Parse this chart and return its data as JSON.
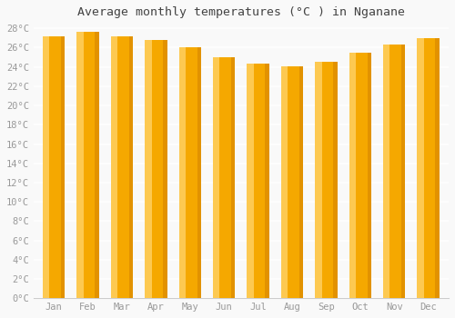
{
  "title": "Average monthly temperatures (°C ) in Nganane",
  "months": [
    "Jan",
    "Feb",
    "Mar",
    "Apr",
    "May",
    "Jun",
    "Jul",
    "Aug",
    "Sep",
    "Oct",
    "Nov",
    "Dec"
  ],
  "temperatures": [
    27.2,
    27.6,
    27.2,
    26.8,
    26.0,
    25.0,
    24.3,
    24.1,
    24.5,
    25.5,
    26.3,
    27.0
  ],
  "bar_color_main": "#F5A800",
  "bar_color_left": "#FFD060",
  "bar_color_right": "#E09000",
  "ylim_max": 28,
  "ytick_step": 2,
  "background_color": "#f9f9f9",
  "plot_bg_color": "#f9f9f9",
  "grid_color": "#ffffff",
  "tick_label_color": "#999999",
  "title_color": "#444444",
  "title_fontsize": 9.5,
  "tick_fontsize": 7.5,
  "bar_width": 0.65
}
